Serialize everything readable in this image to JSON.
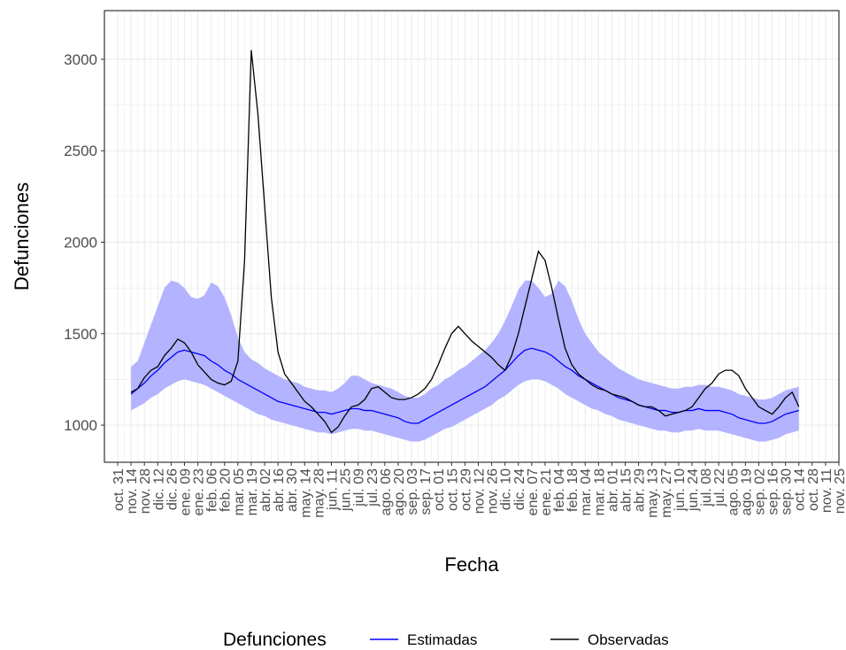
{
  "chart_data": {
    "type": "line",
    "xlabel": "Fecha",
    "ylabel": "Defunciones",
    "legend_title": "Defunciones",
    "legend": "bottom",
    "grid": true,
    "ylim": [
      797,
      3266
    ],
    "yticks": [
      1000,
      1500,
      2000,
      2500,
      3000
    ],
    "categories": [
      "oct. 31",
      null,
      "nov. 14",
      null,
      "nov. 28",
      null,
      "dic. 12",
      null,
      "dic. 26",
      null,
      "ene. 09",
      null,
      "ene. 23",
      null,
      "feb. 06",
      null,
      "feb. 20",
      null,
      "mar. 05",
      null,
      "mar. 19",
      null,
      "abr. 02",
      null,
      "abr. 16",
      null,
      "abr. 30",
      null,
      "may. 14",
      null,
      "may. 28",
      null,
      "jun. 11",
      null,
      "jun. 25",
      null,
      "jul. 09",
      null,
      "jul. 23",
      null,
      "ago. 06",
      null,
      "ago. 20",
      null,
      "sep. 03",
      null,
      "sep. 17",
      null,
      "oct. 01",
      null,
      "oct. 15",
      null,
      "oct. 29",
      null,
      "nov. 12",
      null,
      "nov. 26",
      null,
      "dic. 10",
      null,
      "dic. 24",
      null,
      "ene. 07",
      null,
      "ene. 21",
      null,
      "feb. 04",
      null,
      "feb. 18",
      null,
      "mar. 04",
      null,
      "mar. 18",
      null,
      "abr. 01",
      null,
      "abr. 15",
      null,
      "abr. 29",
      null,
      "may. 13",
      null,
      "may. 27",
      null,
      "jun. 10",
      null,
      "jun. 24",
      null,
      "jul. 08",
      null,
      "jul. 22",
      null,
      "ago. 05",
      null,
      "ago. 19",
      null,
      "sep. 02",
      null,
      "sep. 16",
      null,
      "sep. 30",
      null,
      "oct. 14",
      null,
      "oct. 28",
      null,
      "nov. 11",
      null,
      "nov. 25"
    ],
    "band": {
      "color": "#b3b3ff",
      "upper": [
        null,
        null,
        1320,
        1350,
        1450,
        1550,
        1650,
        1750,
        1790,
        1780,
        1750,
        1700,
        1690,
        1710,
        1780,
        1760,
        1700,
        1600,
        1480,
        1400,
        1360,
        1340,
        1310,
        1290,
        1270,
        1250,
        1240,
        1230,
        1210,
        1200,
        1190,
        1190,
        1180,
        1200,
        1230,
        1270,
        1270,
        1250,
        1230,
        1220,
        1210,
        1200,
        1180,
        1160,
        1150,
        1150,
        1170,
        1200,
        1220,
        1250,
        1270,
        1300,
        1320,
        1350,
        1380,
        1410,
        1450,
        1500,
        1570,
        1650,
        1740,
        1790,
        1790,
        1750,
        1700,
        1720,
        1790,
        1760,
        1680,
        1580,
        1500,
        1450,
        1400,
        1370,
        1340,
        1310,
        1290,
        1270,
        1250,
        1240,
        1230,
        1220,
        1210,
        1200,
        1200,
        1210,
        1210,
        1220,
        1220,
        1210,
        1210,
        1200,
        1190,
        1170,
        1160,
        1150,
        1140,
        1140,
        1150,
        1170,
        1190,
        1200,
        1210,
        null,
        null,
        null,
        null,
        null,
        null
      ],
      "lower": [
        null,
        null,
        1080,
        1100,
        1120,
        1150,
        1170,
        1200,
        1220,
        1240,
        1250,
        1240,
        1230,
        1220,
        1200,
        1180,
        1160,
        1140,
        1120,
        1100,
        1080,
        1060,
        1050,
        1030,
        1020,
        1010,
        1000,
        990,
        980,
        970,
        960,
        960,
        950,
        960,
        970,
        980,
        980,
        970,
        970,
        960,
        950,
        940,
        930,
        920,
        910,
        910,
        920,
        940,
        960,
        980,
        990,
        1010,
        1030,
        1050,
        1070,
        1090,
        1110,
        1140,
        1160,
        1190,
        1220,
        1240,
        1250,
        1250,
        1240,
        1220,
        1200,
        1170,
        1150,
        1130,
        1110,
        1090,
        1080,
        1060,
        1050,
        1030,
        1020,
        1010,
        1000,
        990,
        980,
        970,
        970,
        960,
        960,
        970,
        970,
        980,
        970,
        970,
        970,
        960,
        950,
        940,
        930,
        920,
        910,
        910,
        920,
        930,
        950,
        960,
        970,
        null,
        null,
        null,
        null,
        null,
        null
      ]
    },
    "series": [
      {
        "name": "Estimadas",
        "color": "#0000ff",
        "values": [
          null,
          null,
          1170,
          1200,
          1230,
          1270,
          1300,
          1340,
          1370,
          1400,
          1410,
          1400,
          1390,
          1380,
          1350,
          1330,
          1300,
          1280,
          1250,
          1230,
          1210,
          1190,
          1170,
          1150,
          1130,
          1120,
          1110,
          1100,
          1090,
          1080,
          1070,
          1070,
          1060,
          1070,
          1080,
          1090,
          1090,
          1080,
          1080,
          1070,
          1060,
          1050,
          1040,
          1020,
          1010,
          1010,
          1030,
          1050,
          1070,
          1090,
          1110,
          1130,
          1150,
          1170,
          1190,
          1210,
          1240,
          1270,
          1300,
          1340,
          1380,
          1410,
          1420,
          1410,
          1400,
          1380,
          1350,
          1320,
          1300,
          1270,
          1250,
          1230,
          1210,
          1190,
          1170,
          1150,
          1140,
          1130,
          1110,
          1100,
          1090,
          1080,
          1080,
          1070,
          1070,
          1080,
          1080,
          1090,
          1080,
          1080,
          1080,
          1070,
          1060,
          1040,
          1030,
          1020,
          1010,
          1010,
          1020,
          1040,
          1060,
          1070,
          1080,
          null,
          null,
          null,
          null,
          null,
          null
        ]
      },
      {
        "name": "Observadas",
        "color": "#000000",
        "values": [
          null,
          null,
          1180,
          1200,
          1260,
          1300,
          1320,
          1380,
          1420,
          1470,
          1450,
          1400,
          1330,
          1290,
          1250,
          1230,
          1220,
          1240,
          1350,
          1900,
          3050,
          2700,
          2200,
          1700,
          1400,
          1280,
          1230,
          1180,
          1130,
          1100,
          1060,
          1020,
          960,
          990,
          1050,
          1100,
          1110,
          1140,
          1200,
          1210,
          1180,
          1150,
          1140,
          1140,
          1150,
          1170,
          1200,
          1250,
          1330,
          1420,
          1500,
          1540,
          1500,
          1460,
          1430,
          1400,
          1370,
          1330,
          1300,
          1380,
          1500,
          1650,
          1800,
          1950,
          1900,
          1750,
          1580,
          1420,
          1330,
          1280,
          1250,
          1220,
          1200,
          1190,
          1170,
          1160,
          1150,
          1130,
          1110,
          1100,
          1100,
          1080,
          1050,
          1060,
          1070,
          1080,
          1100,
          1150,
          1200,
          1230,
          1280,
          1300,
          1300,
          1270,
          1200,
          1150,
          1100,
          1080,
          1060,
          1100,
          1150,
          1180,
          1100,
          null,
          null,
          null,
          null,
          null,
          null
        ]
      }
    ]
  }
}
